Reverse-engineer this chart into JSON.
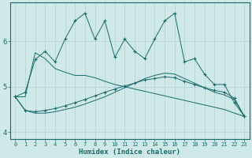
{
  "xlabel": "Humidex (Indice chaleur)",
  "bg_color": "#cfe8e8",
  "line_color": "#1a6b6b",
  "grid_color": "#b8d4d4",
  "xlim": [
    -0.5,
    23.5
  ],
  "ylim": [
    3.85,
    6.85
  ],
  "xticks": [
    0,
    1,
    2,
    3,
    4,
    5,
    6,
    7,
    8,
    9,
    10,
    11,
    12,
    13,
    14,
    15,
    16,
    17,
    18,
    19,
    20,
    21,
    22,
    23
  ],
  "yticks": [
    4,
    5,
    6
  ],
  "series": [
    {
      "x": [
        0,
        1,
        2,
        3,
        4,
        5,
        6,
        7,
        8,
        9,
        10,
        11,
        12,
        13,
        14,
        15,
        16,
        17,
        18,
        19,
        20,
        21,
        22,
        23
      ],
      "y": [
        4.78,
        4.88,
        5.6,
        5.78,
        5.55,
        6.05,
        6.45,
        6.62,
        6.05,
        6.45,
        5.65,
        6.05,
        5.78,
        5.62,
        6.05,
        6.45,
        6.62,
        5.55,
        5.62,
        5.28,
        5.05,
        5.05,
        4.65,
        4.35
      ],
      "marker": "+"
    },
    {
      "x": [
        0,
        1,
        2,
        3,
        4,
        5,
        6,
        7,
        8,
        9,
        10,
        11,
        12,
        13,
        14,
        15,
        16,
        17,
        18,
        19,
        20,
        21,
        22,
        23
      ],
      "y": [
        4.78,
        4.78,
        5.75,
        5.62,
        5.4,
        5.32,
        5.25,
        5.25,
        5.2,
        5.12,
        5.05,
        5.0,
        4.95,
        4.9,
        4.85,
        4.8,
        4.75,
        4.7,
        4.65,
        4.6,
        4.55,
        4.5,
        4.42,
        4.35
      ],
      "marker": null
    },
    {
      "x": [
        0,
        1,
        2,
        3,
        4,
        5,
        6,
        7,
        8,
        9,
        10,
        11,
        12,
        13,
        14,
        15,
        16,
        17,
        18,
        19,
        20,
        21,
        22,
        23
      ],
      "y": [
        4.78,
        4.48,
        4.45,
        4.48,
        4.52,
        4.58,
        4.65,
        4.72,
        4.8,
        4.88,
        4.95,
        5.02,
        5.08,
        5.15,
        5.18,
        5.22,
        5.2,
        5.12,
        5.05,
        4.98,
        4.92,
        4.88,
        4.75,
        4.35
      ],
      "marker": "+"
    },
    {
      "x": [
        0,
        1,
        2,
        3,
        4,
        5,
        6,
        7,
        8,
        9,
        10,
        11,
        12,
        13,
        14,
        15,
        16,
        17,
        18,
        19,
        20,
        21,
        22,
        23
      ],
      "y": [
        4.78,
        4.48,
        4.42,
        4.42,
        4.45,
        4.5,
        4.55,
        4.62,
        4.7,
        4.78,
        4.88,
        4.98,
        5.08,
        5.18,
        5.25,
        5.3,
        5.28,
        5.18,
        5.08,
        4.98,
        4.88,
        4.82,
        4.72,
        4.35
      ],
      "marker": null
    }
  ]
}
